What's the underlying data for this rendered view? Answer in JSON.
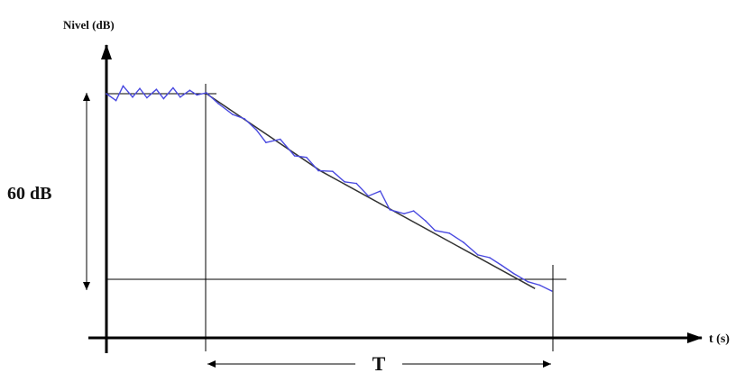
{
  "chart_data": {
    "type": "line",
    "title": "",
    "ylabel": "Nivel (dB)",
    "xlabel": "t (s)",
    "series": [
      {
        "values": [
          [
            0.0,
            60.0
          ],
          [
            0.04,
            57.8
          ],
          [
            0.07,
            62.5
          ],
          [
            0.11,
            58.9
          ],
          [
            0.14,
            61.7
          ],
          [
            0.17,
            58.7
          ],
          [
            0.21,
            61.4
          ],
          [
            0.24,
            58.4
          ],
          [
            0.28,
            61.9
          ],
          [
            0.31,
            58.9
          ],
          [
            0.35,
            61.1
          ],
          [
            0.38,
            59.6
          ],
          [
            0.42,
            60.3
          ],
          [
            0.47,
            56.8
          ],
          [
            0.53,
            53.3
          ],
          [
            0.58,
            51.9
          ],
          [
            0.63,
            48.3
          ],
          [
            0.67,
            44.2
          ],
          [
            0.73,
            45.3
          ],
          [
            0.79,
            39.9
          ],
          [
            0.84,
            39.4
          ],
          [
            0.89,
            35.1
          ],
          [
            0.95,
            34.9
          ],
          [
            1.0,
            31.5
          ],
          [
            1.05,
            31.0
          ],
          [
            1.1,
            26.9
          ],
          [
            1.15,
            28.5
          ],
          [
            1.19,
            22.5
          ],
          [
            1.25,
            21.2
          ],
          [
            1.29,
            22.1
          ],
          [
            1.34,
            18.9
          ],
          [
            1.38,
            15.8
          ],
          [
            1.44,
            14.9
          ],
          [
            1.5,
            11.9
          ],
          [
            1.56,
            7.9
          ],
          [
            1.61,
            7.0
          ],
          [
            1.66,
            4.5
          ],
          [
            1.71,
            1.9
          ],
          [
            1.77,
            -0.8
          ],
          [
            1.82,
            -1.9
          ],
          [
            1.87,
            -3.8
          ]
        ],
        "color": "#4a4ae0"
      },
      {
        "values": [
          [
            0.42,
            60.0
          ],
          [
            0.9,
            35.0
          ],
          [
            1.8,
            -3.0
          ]
        ],
        "color": "#333333"
      }
    ],
    "annotations": {
      "level_span": "60 dB",
      "decay_time": "T"
    }
  }
}
